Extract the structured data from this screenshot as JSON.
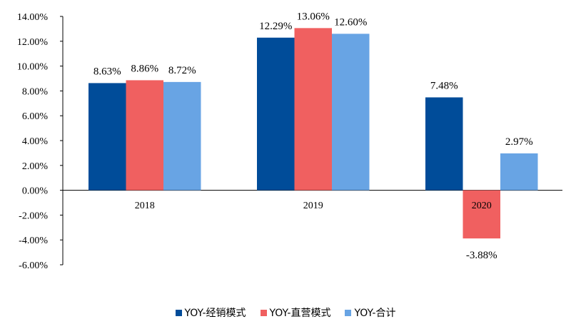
{
  "chart_data": {
    "type": "bar",
    "categories": [
      "2018",
      "2019",
      "2020"
    ],
    "series": [
      {
        "name": "YOY-经销模式",
        "color": "#004c99",
        "values": [
          8.63,
          12.29,
          7.48
        ],
        "labels": [
          "8.63%",
          "12.29%",
          "7.48%"
        ]
      },
      {
        "name": "YOY-直营模式",
        "color": "#f06060",
        "values": [
          8.86,
          13.06,
          -3.88
        ],
        "labels": [
          "8.86%",
          "13.06%",
          "-3.88%"
        ]
      },
      {
        "name": "YOY-合计",
        "color": "#68a4e4",
        "values": [
          8.72,
          12.6,
          2.97
        ],
        "labels": [
          "8.72%",
          "12.60%",
          "2.97%"
        ]
      }
    ],
    "y_ticks": [
      "14.00%",
      "12.00%",
      "10.00%",
      "8.00%",
      "6.00%",
      "4.00%",
      "2.00%",
      "0.00%",
      "-2.00%",
      "-4.00%",
      "-6.00%"
    ],
    "y_tick_values": [
      14,
      12,
      10,
      8,
      6,
      4,
      2,
      0,
      -2,
      -4,
      -6
    ],
    "ylim": [
      -6,
      14
    ],
    "grid": false,
    "legend_position": "bottom"
  }
}
